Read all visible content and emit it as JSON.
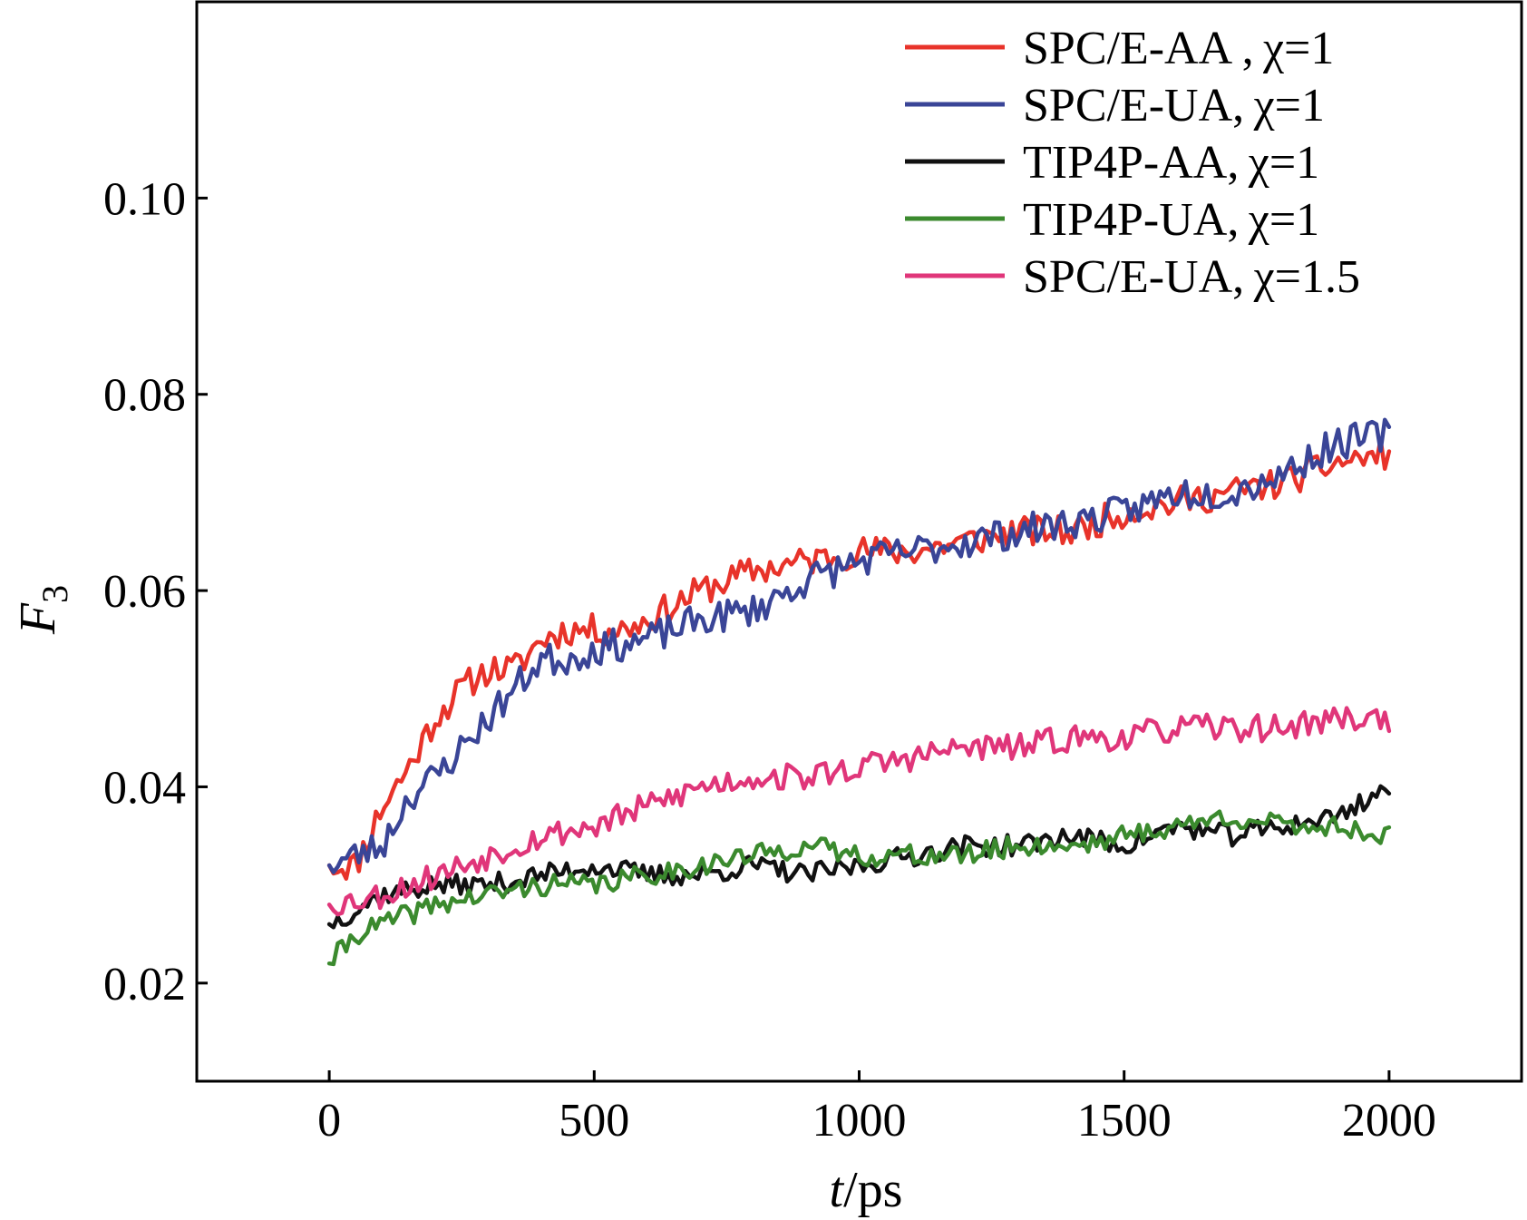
{
  "chart_data": {
    "type": "line",
    "title": "",
    "xlabel": {
      "var": "t",
      "unit": "/ps"
    },
    "ylabel": {
      "var": "F",
      "sub": "3"
    },
    "xlim": [
      -250,
      2250
    ],
    "ylim": [
      0.01,
      0.12
    ],
    "xticks": [
      0,
      500,
      1000,
      1500,
      2000
    ],
    "xtick_labels": [
      "0",
      "500",
      "1000",
      "1500",
      "2000"
    ],
    "yticks": [
      0.02,
      0.04,
      0.06,
      0.08,
      0.1
    ],
    "ytick_labels": [
      "0.02",
      "0.04",
      "0.06",
      "0.08",
      "0.10"
    ],
    "grid": false,
    "legend_position": "top-right",
    "series": [
      {
        "name": "SPC/E-AA , χ=1",
        "color": "#e8332a",
        "anchors": [
          [
            0,
            0.032
          ],
          [
            50,
            0.032
          ],
          [
            100,
            0.038
          ],
          [
            150,
            0.042
          ],
          [
            200,
            0.047
          ],
          [
            250,
            0.05
          ],
          [
            300,
            0.052
          ],
          [
            350,
            0.052
          ],
          [
            400,
            0.055
          ],
          [
            450,
            0.056
          ],
          [
            500,
            0.056
          ],
          [
            550,
            0.056
          ],
          [
            600,
            0.057
          ],
          [
            700,
            0.06
          ],
          [
            800,
            0.062
          ],
          [
            900,
            0.063
          ],
          [
            1000,
            0.064
          ],
          [
            1100,
            0.064
          ],
          [
            1200,
            0.065
          ],
          [
            1300,
            0.066
          ],
          [
            1400,
            0.066
          ],
          [
            1500,
            0.068
          ],
          [
            1600,
            0.069
          ],
          [
            1700,
            0.07
          ],
          [
            1800,
            0.071
          ],
          [
            1900,
            0.073
          ],
          [
            2000,
            0.074
          ]
        ],
        "noise": 0.0016,
        "seed": 11
      },
      {
        "name": "SPC/E-UA, χ=1",
        "color": "#3a4597",
        "anchors": [
          [
            0,
            0.032
          ],
          [
            50,
            0.033
          ],
          [
            100,
            0.034
          ],
          [
            150,
            0.039
          ],
          [
            200,
            0.041
          ],
          [
            250,
            0.044
          ],
          [
            300,
            0.047
          ],
          [
            350,
            0.05
          ],
          [
            400,
            0.053
          ],
          [
            450,
            0.053
          ],
          [
            500,
            0.054
          ],
          [
            600,
            0.055
          ],
          [
            700,
            0.057
          ],
          [
            800,
            0.058
          ],
          [
            900,
            0.061
          ],
          [
            1000,
            0.063
          ],
          [
            1100,
            0.064
          ],
          [
            1200,
            0.065
          ],
          [
            1300,
            0.066
          ],
          [
            1400,
            0.067
          ],
          [
            1500,
            0.068
          ],
          [
            1600,
            0.07
          ],
          [
            1700,
            0.07
          ],
          [
            1800,
            0.072
          ],
          [
            1900,
            0.075
          ],
          [
            2000,
            0.076
          ]
        ],
        "noise": 0.0017,
        "seed": 23
      },
      {
        "name": "TIP4P-AA, χ=1",
        "color": "#111111",
        "anchors": [
          [
            0,
            0.026
          ],
          [
            100,
            0.029
          ],
          [
            200,
            0.03
          ],
          [
            300,
            0.03
          ],
          [
            400,
            0.031
          ],
          [
            500,
            0.032
          ],
          [
            600,
            0.031
          ],
          [
            700,
            0.031
          ],
          [
            800,
            0.032
          ],
          [
            900,
            0.031
          ],
          [
            1000,
            0.032
          ],
          [
            1100,
            0.033
          ],
          [
            1200,
            0.034
          ],
          [
            1300,
            0.034
          ],
          [
            1400,
            0.035
          ],
          [
            1500,
            0.034
          ],
          [
            1600,
            0.036
          ],
          [
            1700,
            0.035
          ],
          [
            1800,
            0.036
          ],
          [
            1900,
            0.037
          ],
          [
            2000,
            0.04
          ]
        ],
        "noise": 0.0011,
        "seed": 37
      },
      {
        "name": "TIP4P-UA, χ=1",
        "color": "#3b8a2e",
        "anchors": [
          [
            0,
            0.022
          ],
          [
            50,
            0.025
          ],
          [
            100,
            0.026
          ],
          [
            200,
            0.028
          ],
          [
            300,
            0.029
          ],
          [
            400,
            0.03
          ],
          [
            500,
            0.03
          ],
          [
            600,
            0.031
          ],
          [
            700,
            0.032
          ],
          [
            800,
            0.033
          ],
          [
            900,
            0.034
          ],
          [
            1000,
            0.033
          ],
          [
            1100,
            0.033
          ],
          [
            1200,
            0.033
          ],
          [
            1300,
            0.034
          ],
          [
            1400,
            0.034
          ],
          [
            1500,
            0.035
          ],
          [
            1600,
            0.036
          ],
          [
            1700,
            0.037
          ],
          [
            1800,
            0.036
          ],
          [
            1900,
            0.036
          ],
          [
            2000,
            0.035
          ]
        ],
        "noise": 0.0011,
        "seed": 41
      },
      {
        "name": "SPC/E-UA, χ=1.5",
        "color": "#e0367a",
        "anchors": [
          [
            0,
            0.028
          ],
          [
            100,
            0.029
          ],
          [
            200,
            0.031
          ],
          [
            300,
            0.033
          ],
          [
            400,
            0.035
          ],
          [
            500,
            0.036
          ],
          [
            600,
            0.038
          ],
          [
            700,
            0.04
          ],
          [
            800,
            0.041
          ],
          [
            900,
            0.041
          ],
          [
            1000,
            0.042
          ],
          [
            1100,
            0.043
          ],
          [
            1200,
            0.044
          ],
          [
            1300,
            0.044
          ],
          [
            1400,
            0.045
          ],
          [
            1500,
            0.045
          ],
          [
            1600,
            0.046
          ],
          [
            1700,
            0.046
          ],
          [
            1800,
            0.046
          ],
          [
            1900,
            0.047
          ],
          [
            2000,
            0.047
          ]
        ],
        "noise": 0.0014,
        "seed": 53
      }
    ]
  }
}
